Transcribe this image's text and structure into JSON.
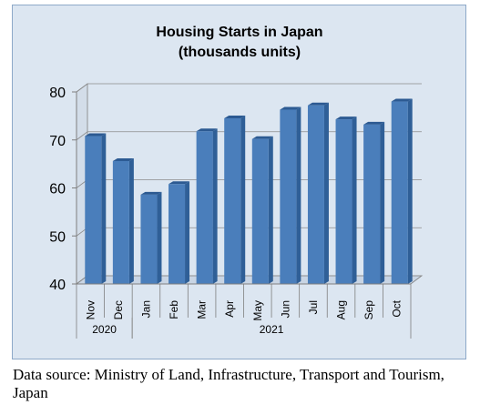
{
  "chart_data": {
    "type": "bar",
    "title": "Housing Starts in Japan",
    "subtitle": "(thousands units)",
    "categories": [
      "Nov",
      "Dec",
      "Jan",
      "Feb",
      "Mar",
      "Apr",
      "May",
      "Jun",
      "Jul",
      "Aug",
      "Sep",
      "Oct"
    ],
    "year_groups": [
      {
        "label": "2020",
        "count": 2
      },
      {
        "label": "2021",
        "count": 10
      }
    ],
    "values": [
      70.8,
      65.6,
      58.6,
      60.8,
      71.8,
      74.5,
      70.2,
      76.3,
      77.2,
      74.3,
      73.2,
      78.0
    ],
    "ylim": [
      40,
      80
    ],
    "yticks": [
      40,
      50,
      60,
      70,
      80
    ],
    "grid": true,
    "bar_color": "#4a7ebb"
  },
  "footer": {
    "source": "Data source: Ministry of Land, Infrastructure, Transport and Tourism, Japan"
  }
}
